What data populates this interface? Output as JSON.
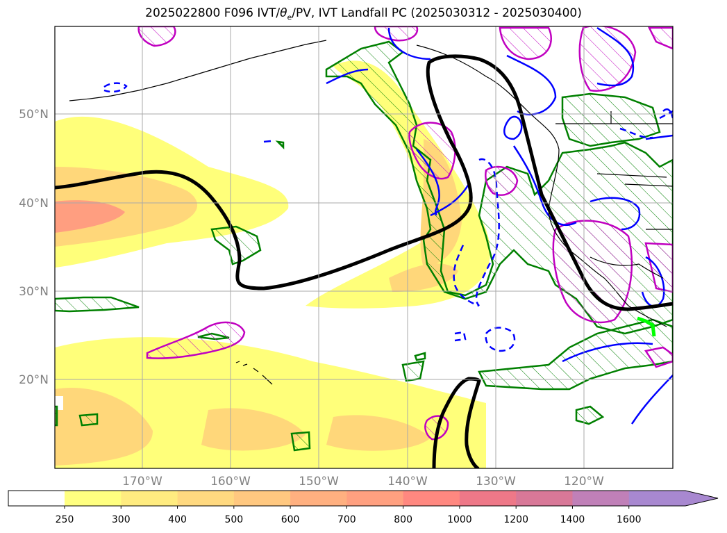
{
  "header": {
    "title_pre": "2025022800 F096 IVT/",
    "title_theta": "θ",
    "title_sub": "e",
    "title_post": "/PV, IVT Landfall PC (2025030312 - 2025030400)"
  },
  "map": {
    "region": "North Pacific / west coast of North America",
    "latitude_labels": [
      "50°N",
      "40°N",
      "30°N",
      "20°N"
    ],
    "longitude_labels": [
      "170°W",
      "160°W",
      "150°W",
      "140°W",
      "130°W",
      "120°W"
    ],
    "layers": [
      {
        "name": "IVT shading",
        "color": "#ffff66"
      },
      {
        "name": "theta-e / PV contour",
        "color": "#000000"
      },
      {
        "name": "green hatched contours",
        "color": "#008000"
      },
      {
        "name": "magenta hatched contours",
        "color": "#c000c0"
      },
      {
        "name": "blue contours",
        "color": "#0000ff"
      },
      {
        "name": "landfall point marker",
        "color": "#00ff00"
      }
    ]
  },
  "colorbar": {
    "ticks": [
      "250",
      "300",
      "400",
      "500",
      "600",
      "700",
      "800",
      "1000",
      "1200",
      "1400",
      "1600"
    ],
    "colors": [
      "#ffff80",
      "#ffec80",
      "#ffd980",
      "#ffc880",
      "#ffb080",
      "#ffa080",
      "#ff8880",
      "#ee7888",
      "#d87898",
      "#c080b8",
      "#a888d0"
    ],
    "extend": "max"
  }
}
